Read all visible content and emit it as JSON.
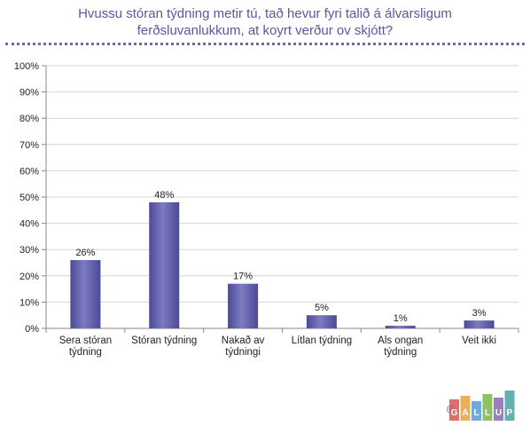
{
  "title_lines": [
    "Hvussu stóran týdning metir tú, tað hevur fyri talið á álvarsligum",
    "ferðsluvanlukkum, at koyrt verður ov skjótt?"
  ],
  "chart_data": {
    "type": "bar",
    "categories": [
      [
        "Sera stóran",
        "týdning"
      ],
      [
        "Stóran týdning"
      ],
      [
        "Nakað av",
        "týdningi"
      ],
      [
        "Lítlan týdning"
      ],
      [
        "Als ongan",
        "týdning"
      ],
      [
        "Veit ikki"
      ]
    ],
    "values": [
      26,
      48,
      17,
      5,
      1,
      3
    ],
    "value_labels": [
      "26%",
      "48%",
      "17%",
      "5%",
      "1%",
      "3%"
    ],
    "yticks": [
      "0%",
      "10%",
      "20%",
      "30%",
      "40%",
      "50%",
      "60%",
      "70%",
      "80%",
      "90%",
      "100%"
    ],
    "ylim": [
      0,
      100
    ],
    "grid": true,
    "bar_color": "#4c4a96",
    "bar_highlight": "#7d7bc2"
  },
  "logo": {
    "copyright_symbol": "©",
    "text": "GALLUP",
    "colors": [
      "#d9534f",
      "#e8a33d",
      "#5b9bd5",
      "#7ab648",
      "#8a6bb0",
      "#4aa3a3"
    ]
  }
}
